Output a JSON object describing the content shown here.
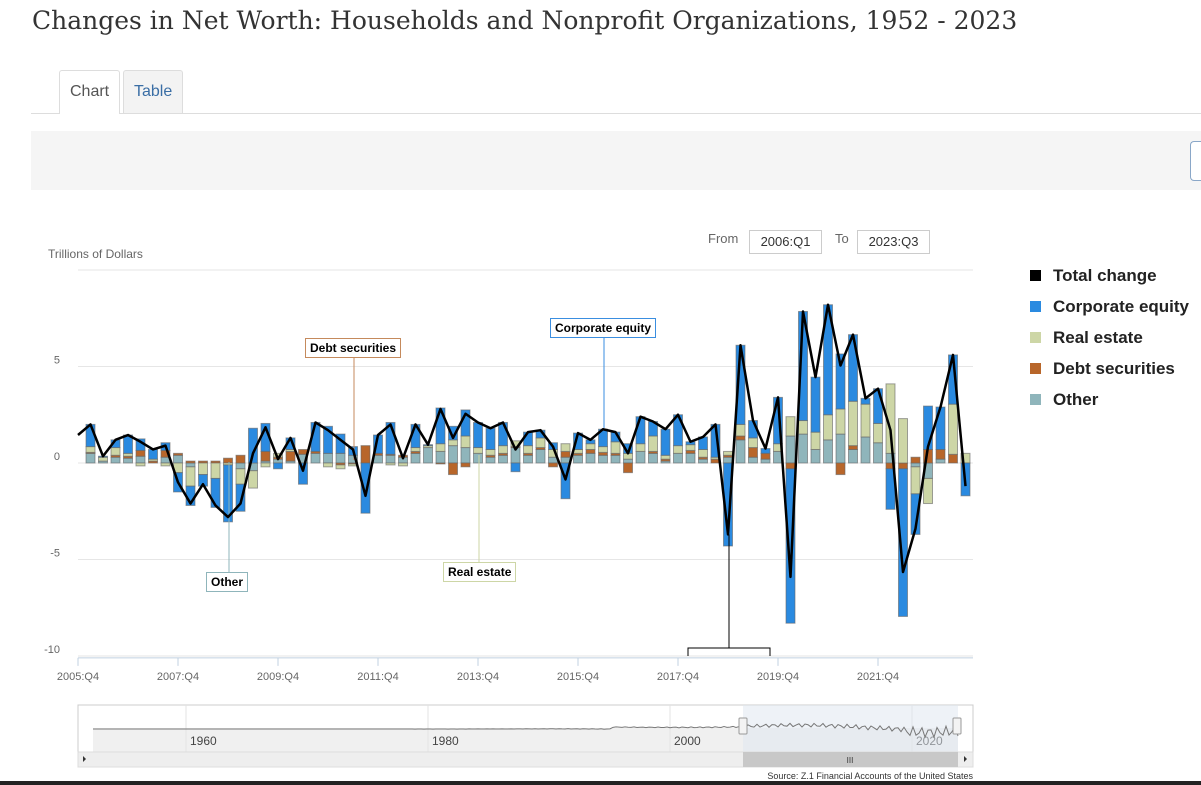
{
  "page": {
    "title": "Changes in Net Worth: Households and Nonprofit Organizations, 1952 - 2023"
  },
  "tabs": [
    {
      "label": "Chart",
      "active": true
    },
    {
      "label": "Table",
      "active": false
    }
  ],
  "range": {
    "from_label": "From",
    "from_value": "2006:Q1",
    "to_label": "To",
    "to_value": "2023:Q3"
  },
  "source": "Source: Z.1 Financial Accounts of the United States",
  "navigator": {
    "labels": [
      "1960",
      "1980",
      "2000",
      "2020"
    ],
    "scroll_grip": "III"
  },
  "chart_data": {
    "type": "bar",
    "stacked": true,
    "title": "Changes in Net Worth: Households and Nonprofit Organizations, 1952 - 2023",
    "ylabel": "Trillions of Dollars",
    "ylim": [
      -10,
      10
    ],
    "yticks": [
      "5",
      "0",
      "-5",
      "-10"
    ],
    "ytick_values": [
      5,
      0,
      -5,
      -10
    ],
    "xticks": [
      "2005:Q4",
      "2007:Q4",
      "2009:Q4",
      "2011:Q4",
      "2013:Q4",
      "2015:Q4",
      "2017:Q4",
      "2019:Q4",
      "2021:Q4"
    ],
    "first_quarter": "2006:Q1",
    "colors": {
      "Total change": "#000000",
      "Corporate equity": "#2a8ae0",
      "Real estate": "#cdd6a6",
      "Debt securities": "#b8662a",
      "Other": "#8fb5bb"
    },
    "legend": [
      "Total change",
      "Corporate equity",
      "Real estate",
      "Debt securities",
      "Other"
    ],
    "legend_position": "right",
    "total_line_start_2005Q4": 1.45,
    "total": [
      2.0,
      0.35,
      1.2,
      1.45,
      1.1,
      0.7,
      0.9,
      -1.0,
      -2.1,
      -1.1,
      -2.2,
      -2.8,
      -2.1,
      0.5,
      1.85,
      0.2,
      1.3,
      -0.4,
      2.1,
      1.7,
      1.2,
      0.7,
      -1.7,
      1.45,
      2.0,
      0.25,
      2.0,
      0.95,
      2.8,
      1.3,
      2.55,
      2.1,
      1.8,
      2.1,
      0.7,
      1.6,
      1.7,
      0.85,
      -0.85,
      1.55,
      1.2,
      1.75,
      1.6,
      0.5,
      2.4,
      2.15,
      1.75,
      2.5,
      1.1,
      1.35,
      2.0,
      -3.7,
      6.1,
      2.2,
      0.75,
      3.4,
      -5.9,
      7.85,
      4.45,
      8.2,
      5.05,
      6.65,
      3.35,
      3.85,
      1.7,
      -5.65,
      -3.4,
      0.85,
      2.9,
      5.6,
      -1.2
    ],
    "series": [
      {
        "name": "Other",
        "values": [
          0.5,
          0.1,
          0.3,
          0.25,
          0.35,
          0.0,
          0.3,
          0.4,
          -0.2,
          0.0,
          0.0,
          0.0,
          -0.3,
          -0.4,
          0.1,
          0.2,
          0.1,
          0.45,
          0.5,
          0.5,
          0.5,
          0.4,
          0.0,
          0.4,
          0.4,
          0.3,
          0.5,
          0.8,
          0.6,
          0.9,
          0.8,
          0.5,
          0.3,
          0.4,
          0.8,
          0.4,
          0.7,
          0.3,
          0.3,
          0.4,
          0.5,
          0.4,
          0.4,
          0.2,
          0.6,
          0.5,
          0.1,
          0.5,
          0.5,
          0.2,
          0.0,
          0.3,
          1.2,
          0.3,
          0.2,
          0.6,
          1.4,
          1.5,
          0.7,
          1.2,
          1.5,
          0.7,
          1.35,
          1.05,
          0.5,
          0.0,
          -0.2,
          -0.8,
          0.2,
          0.0,
          0.0
        ]
      },
      {
        "name": "Debt securities",
        "values": [
          0.05,
          0.0,
          0.1,
          0.1,
          0.3,
          0.1,
          0.35,
          0.1,
          0.1,
          0.1,
          0.1,
          0.25,
          0.4,
          0.0,
          0.5,
          0.1,
          0.5,
          0.25,
          0.1,
          0.0,
          -0.1,
          -0.05,
          0.9,
          0.1,
          0.05,
          0.1,
          0.1,
          0.0,
          -0.05,
          -0.6,
          -0.2,
          0.0,
          0.1,
          0.1,
          0.05,
          0.1,
          0.1,
          -0.2,
          0.3,
          0.1,
          0.2,
          0.15,
          0.1,
          -0.5,
          0.0,
          0.1,
          0.1,
          0.0,
          0.15,
          0.1,
          0.2,
          0.1,
          0.2,
          0.5,
          0.3,
          0.0,
          -0.3,
          0.0,
          0.0,
          0.0,
          -0.6,
          0.2,
          0.0,
          0.0,
          -0.3,
          -0.3,
          0.3,
          0.7,
          0.5,
          0.45,
          0.0
        ]
      },
      {
        "name": "Real estate",
        "values": [
          0.3,
          0.2,
          0.4,
          0.15,
          -0.15,
          0.1,
          -0.15,
          -0.5,
          -1.0,
          -0.6,
          -0.8,
          -0.1,
          -0.8,
          -0.9,
          -0.2,
          0.2,
          0.1,
          0.0,
          0.0,
          -0.2,
          -0.2,
          -0.1,
          0.0,
          0.0,
          -0.1,
          -0.15,
          0.2,
          0.1,
          0.4,
          0.3,
          0.6,
          0.3,
          0.3,
          0.4,
          0.3,
          0.4,
          0.5,
          0.4,
          0.4,
          0.2,
          0.3,
          0.3,
          0.6,
          0.3,
          0.4,
          0.8,
          0.2,
          0.4,
          0.3,
          0.4,
          0.1,
          0.2,
          0.6,
          0.5,
          0.0,
          0.4,
          1.0,
          0.7,
          0.9,
          1.3,
          1.3,
          2.3,
          1.7,
          1.0,
          3.6,
          2.3,
          -1.4,
          -1.3,
          0.0,
          2.6,
          0.5
        ]
      },
      {
        "name": "Corporate equity",
        "values": [
          1.15,
          0.05,
          0.4,
          0.95,
          0.6,
          0.5,
          0.4,
          -1.0,
          -1.0,
          -0.6,
          -1.5,
          -2.95,
          -1.4,
          1.8,
          1.45,
          -0.3,
          0.6,
          -1.1,
          1.5,
          1.4,
          1.0,
          0.45,
          -2.6,
          0.95,
          1.65,
          0.0,
          1.2,
          0.05,
          1.85,
          0.7,
          1.35,
          1.3,
          1.1,
          1.2,
          -0.45,
          0.7,
          0.4,
          0.35,
          -1.85,
          0.85,
          0.2,
          0.9,
          0.5,
          0.5,
          1.4,
          0.75,
          1.35,
          1.6,
          0.15,
          0.65,
          1.7,
          -4.3,
          4.1,
          0.9,
          0.25,
          2.4,
          -8.0,
          5.65,
          2.85,
          5.7,
          2.85,
          3.45,
          0.3,
          1.8,
          -2.1,
          -7.65,
          -2.1,
          2.25,
          2.2,
          2.55,
          -1.7
        ]
      }
    ],
    "annotations": [
      {
        "text": "Debt securities",
        "quarter": "2011:Q2"
      },
      {
        "text": "Corporate equity",
        "quarter": "2016:Q2"
      },
      {
        "text": "Real estate",
        "quarter": "2013:Q4"
      },
      {
        "text": "Other",
        "quarter": "2008:Q4"
      }
    ]
  }
}
